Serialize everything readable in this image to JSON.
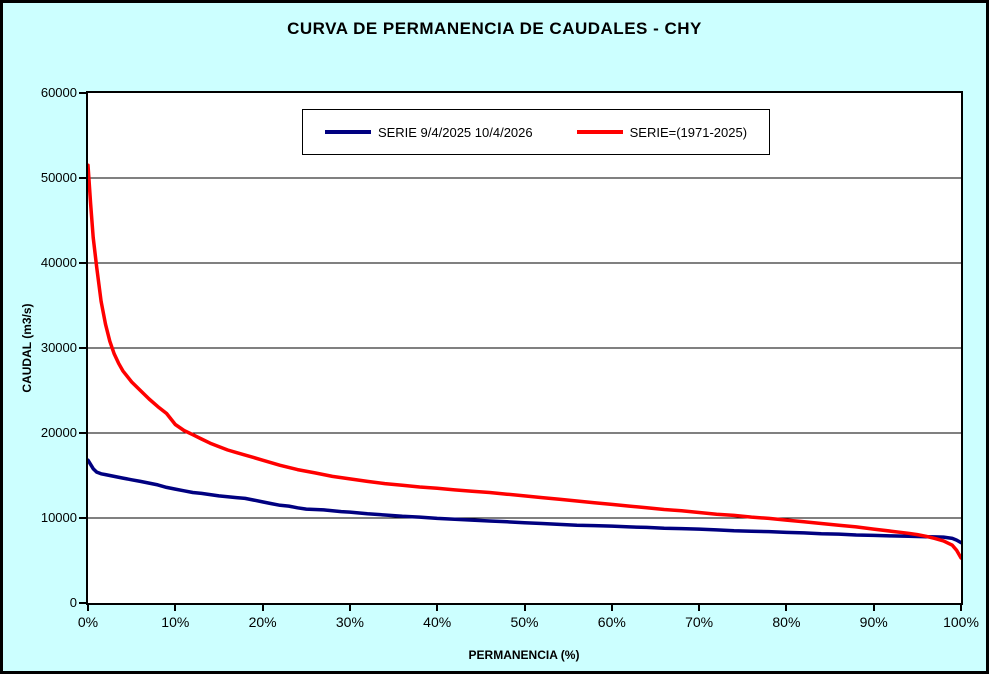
{
  "chart_data": {
    "type": "line",
    "title": "CURVA DE PERMANENCIA DE CAUDALES - CHY",
    "xlabel": "PERMANENCIA (%)",
    "ylabel": "CAUDAL (m3/s)",
    "xlim": [
      0,
      100
    ],
    "ylim": [
      0,
      60000
    ],
    "x_ticks_percent": [
      0,
      10,
      20,
      30,
      40,
      50,
      60,
      70,
      80,
      90,
      100
    ],
    "x_tick_labels": [
      "0%",
      "10%",
      "20%",
      "30%",
      "40%",
      "50%",
      "60%",
      "70%",
      "80%",
      "90%",
      "100%"
    ],
    "y_ticks": [
      0,
      10000,
      20000,
      30000,
      40000,
      50000,
      60000
    ],
    "grid": "horizontal-major",
    "legend_position": "top-center-inside",
    "background_color": "#CCFFFF",
    "plot_background": "#FFFFFF",
    "series": [
      {
        "name": "SERIE 9/4/2025 10/4/2026",
        "color": "#000080",
        "width": 3.5,
        "points": [
          [
            0,
            16800
          ],
          [
            0.3,
            16300
          ],
          [
            0.6,
            15800
          ],
          [
            1,
            15400
          ],
          [
            1.5,
            15200
          ],
          [
            2,
            15100
          ],
          [
            3,
            14900
          ],
          [
            4,
            14700
          ],
          [
            5,
            14500
          ],
          [
            6,
            14300
          ],
          [
            7,
            14100
          ],
          [
            8,
            13900
          ],
          [
            9,
            13600
          ],
          [
            10,
            13400
          ],
          [
            11,
            13200
          ],
          [
            12,
            13000
          ],
          [
            13,
            12900
          ],
          [
            14,
            12750
          ],
          [
            15,
            12600
          ],
          [
            16,
            12500
          ],
          [
            17,
            12400
          ],
          [
            18,
            12300
          ],
          [
            19,
            12100
          ],
          [
            20,
            11900
          ],
          [
            21,
            11700
          ],
          [
            22,
            11500
          ],
          [
            23,
            11400
          ],
          [
            24,
            11200
          ],
          [
            25,
            11050
          ],
          [
            26,
            11000
          ],
          [
            27,
            10950
          ],
          [
            28,
            10850
          ],
          [
            29,
            10750
          ],
          [
            30,
            10700
          ],
          [
            32,
            10500
          ],
          [
            34,
            10350
          ],
          [
            36,
            10200
          ],
          [
            38,
            10100
          ],
          [
            40,
            9950
          ],
          [
            42,
            9850
          ],
          [
            44,
            9750
          ],
          [
            46,
            9650
          ],
          [
            48,
            9550
          ],
          [
            50,
            9450
          ],
          [
            52,
            9350
          ],
          [
            54,
            9250
          ],
          [
            56,
            9150
          ],
          [
            58,
            9100
          ],
          [
            60,
            9050
          ],
          [
            62,
            8950
          ],
          [
            64,
            8900
          ],
          [
            66,
            8800
          ],
          [
            68,
            8750
          ],
          [
            70,
            8700
          ],
          [
            72,
            8600
          ],
          [
            74,
            8500
          ],
          [
            76,
            8450
          ],
          [
            78,
            8400
          ],
          [
            80,
            8300
          ],
          [
            82,
            8250
          ],
          [
            84,
            8150
          ],
          [
            86,
            8100
          ],
          [
            88,
            8000
          ],
          [
            90,
            7950
          ],
          [
            92,
            7900
          ],
          [
            94,
            7850
          ],
          [
            96,
            7800
          ],
          [
            97,
            7780
          ],
          [
            98,
            7750
          ],
          [
            99,
            7600
          ],
          [
            99.5,
            7400
          ],
          [
            100,
            7100
          ]
        ]
      },
      {
        "name": "SERIE=(1971-2025)",
        "color": "#FF0000",
        "width": 3.5,
        "points": [
          [
            0,
            51500
          ],
          [
            0.3,
            47000
          ],
          [
            0.6,
            43000
          ],
          [
            1,
            39500
          ],
          [
            1.5,
            35500
          ],
          [
            2,
            32800
          ],
          [
            2.5,
            30800
          ],
          [
            3,
            29300
          ],
          [
            3.5,
            28200
          ],
          [
            4,
            27300
          ],
          [
            5,
            26000
          ],
          [
            6,
            25000
          ],
          [
            7,
            24000
          ],
          [
            8,
            23100
          ],
          [
            9,
            22300
          ],
          [
            10,
            21000
          ],
          [
            11,
            20300
          ],
          [
            12,
            19800
          ],
          [
            13,
            19300
          ],
          [
            14,
            18800
          ],
          [
            15,
            18400
          ],
          [
            16,
            18000
          ],
          [
            17,
            17700
          ],
          [
            18,
            17400
          ],
          [
            19,
            17100
          ],
          [
            20,
            16800
          ],
          [
            22,
            16200
          ],
          [
            24,
            15700
          ],
          [
            26,
            15300
          ],
          [
            28,
            14900
          ],
          [
            30,
            14600
          ],
          [
            32,
            14300
          ],
          [
            34,
            14050
          ],
          [
            36,
            13850
          ],
          [
            38,
            13650
          ],
          [
            40,
            13500
          ],
          [
            42,
            13300
          ],
          [
            44,
            13150
          ],
          [
            46,
            13000
          ],
          [
            48,
            12800
          ],
          [
            50,
            12600
          ],
          [
            52,
            12400
          ],
          [
            54,
            12200
          ],
          [
            56,
            12000
          ],
          [
            58,
            11800
          ],
          [
            60,
            11600
          ],
          [
            62,
            11400
          ],
          [
            64,
            11200
          ],
          [
            66,
            11000
          ],
          [
            68,
            10850
          ],
          [
            70,
            10650
          ],
          [
            72,
            10450
          ],
          [
            74,
            10300
          ],
          [
            76,
            10100
          ],
          [
            78,
            9950
          ],
          [
            80,
            9750
          ],
          [
            82,
            9550
          ],
          [
            84,
            9350
          ],
          [
            86,
            9150
          ],
          [
            88,
            8950
          ],
          [
            90,
            8700
          ],
          [
            92,
            8450
          ],
          [
            94,
            8200
          ],
          [
            95,
            8050
          ],
          [
            96,
            7850
          ],
          [
            97,
            7600
          ],
          [
            98,
            7300
          ],
          [
            99,
            6800
          ],
          [
            99.5,
            6200
          ],
          [
            100,
            5300
          ]
        ]
      }
    ]
  }
}
